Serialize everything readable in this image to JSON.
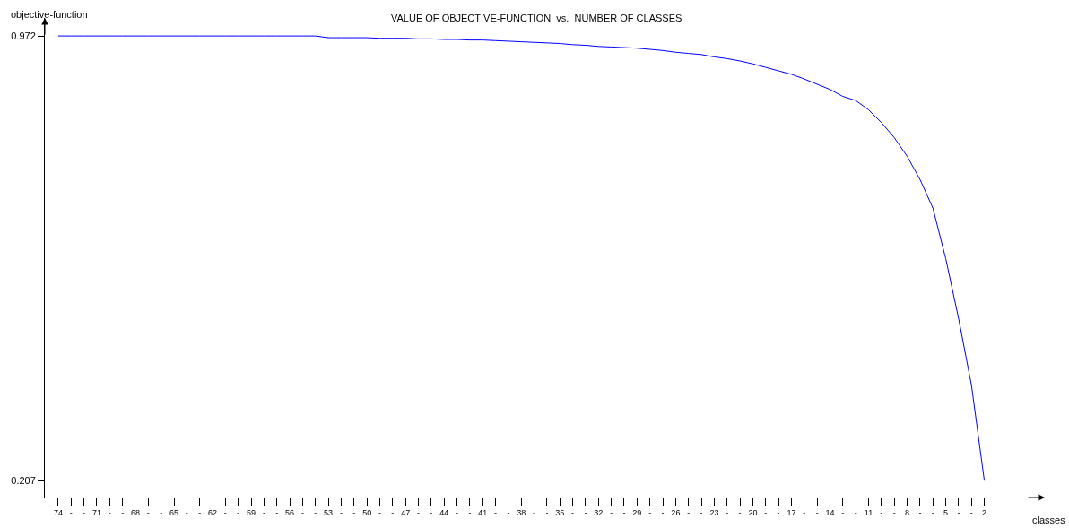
{
  "chart_data": {
    "type": "line",
    "title": "VALUE OF OBJECTIVE-FUNCTION  vs.  NUMBER OF CLASSES",
    "xlabel": "classes",
    "ylabel": "objective-function",
    "categories": [
      "74",
      "-",
      "-",
      "71",
      "-",
      "-",
      "68",
      "-",
      "-",
      "65",
      "-",
      "-",
      "62",
      "-",
      "-",
      "59",
      "-",
      "-",
      "56",
      "-",
      "-",
      "53",
      "-",
      "-",
      "50",
      "-",
      "-",
      "47",
      "-",
      "-",
      "44",
      "-",
      "-",
      "41",
      "-",
      "-",
      "38",
      "-",
      "-",
      "35",
      "-",
      "-",
      "32",
      "-",
      "-",
      "29",
      "-",
      "-",
      "26",
      "-",
      "-",
      "23",
      "-",
      "-",
      "20",
      "-",
      "-",
      "17",
      "-",
      "-",
      "14",
      "-",
      "-",
      "11",
      "-",
      "-",
      "8",
      "-",
      "-",
      "5",
      "-",
      "-",
      "2"
    ],
    "series": [
      {
        "color": "#0000ff",
        "values": [
          0.972,
          0.972,
          0.972,
          0.972,
          0.972,
          0.972,
          0.972,
          0.972,
          0.972,
          0.972,
          0.972,
          0.972,
          0.972,
          0.972,
          0.972,
          0.972,
          0.972,
          0.972,
          0.972,
          0.972,
          0.972,
          0.969,
          0.969,
          0.969,
          0.969,
          0.968,
          0.968,
          0.968,
          0.967,
          0.967,
          0.966,
          0.966,
          0.965,
          0.965,
          0.964,
          0.963,
          0.962,
          0.961,
          0.96,
          0.959,
          0.957,
          0.956,
          0.954,
          0.953,
          0.952,
          0.951,
          0.949,
          0.947,
          0.944,
          0.942,
          0.94,
          0.936,
          0.933,
          0.929,
          0.924,
          0.918,
          0.912,
          0.906,
          0.898,
          0.889,
          0.88,
          0.868,
          0.861,
          0.845,
          0.823,
          0.797,
          0.765,
          0.725,
          0.676,
          0.589,
          0.486,
          0.371,
          0.207
        ]
      }
    ],
    "ylim": [
      0.178,
      1.003
    ],
    "yticks": [
      0.972,
      0.207
    ],
    "marker": "none",
    "line_style": "solid"
  }
}
